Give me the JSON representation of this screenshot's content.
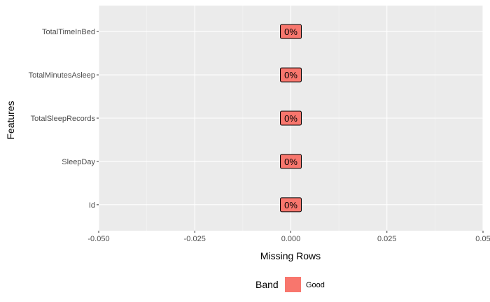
{
  "chart_data": {
    "type": "bar",
    "orientation": "horizontal",
    "categories": [
      "Id",
      "SleepDay",
      "TotalSleepRecords",
      "TotalMinutesAsleep",
      "TotalTimeInBed"
    ],
    "values": [
      0,
      0,
      0,
      0,
      0
    ],
    "value_labels": [
      "0%",
      "0%",
      "0%",
      "0%",
      "0%"
    ],
    "bands": [
      "Good",
      "Good",
      "Good",
      "Good",
      "Good"
    ],
    "xlabel": "Missing Rows",
    "ylabel": "Features",
    "xlim": [
      -0.05,
      0.05
    ],
    "xticks": [
      -0.05,
      -0.025,
      0,
      0.025,
      0.05
    ],
    "xtick_labels": [
      "-0.050",
      "-0.025",
      "0.000",
      "0.025",
      "0.05"
    ],
    "grid": true,
    "legend": {
      "title": "Band",
      "position": "bottom",
      "entries": [
        {
          "label": "Good",
          "color": "#F8766D"
        }
      ]
    },
    "colors": {
      "panel": "#EBEBEB",
      "grid_major": "#FFFFFF",
      "grid_minor": "#F5F5F5",
      "band_good": "#F8766D"
    }
  }
}
